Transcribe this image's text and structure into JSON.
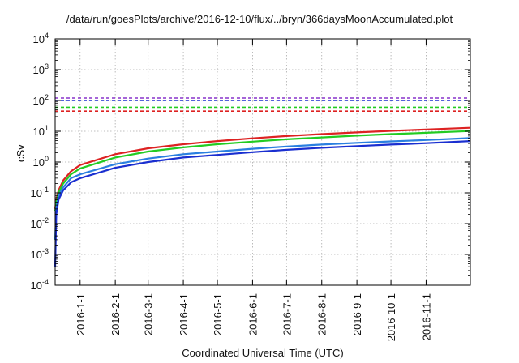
{
  "chart_data": {
    "type": "line",
    "title": "/data/run/goesPlots/archive/2016-12-10/flux/../bryn/366daysMoonAccumulated.plot",
    "xlabel": "Coordinated Universal Time (UTC)",
    "ylabel": "cSv",
    "y_scale": "log",
    "ylim": [
      0.0001,
      10000
    ],
    "y_tick_labels": [
      {
        "base": "10",
        "exp": "-4"
      },
      {
        "base": "10",
        "exp": "-3"
      },
      {
        "base": "10",
        "exp": "-2"
      },
      {
        "base": "10",
        "exp": "-1"
      },
      {
        "base": "10",
        "exp": "0"
      },
      {
        "base": "10",
        "exp": "1"
      },
      {
        "base": "10",
        "exp": "2"
      },
      {
        "base": "10",
        "exp": "3"
      },
      {
        "base": "10",
        "exp": "4"
      }
    ],
    "xlim": [
      "2015-12-10",
      "2016-12-10"
    ],
    "x_ticks": [
      {
        "label": "2016-1-1",
        "date": "2016-01-01"
      },
      {
        "label": "2016-2-1",
        "date": "2016-02-01"
      },
      {
        "label": "2016-3-1",
        "date": "2016-03-01"
      },
      {
        "label": "2016-4-1",
        "date": "2016-04-01"
      },
      {
        "label": "2016-5-1",
        "date": "2016-05-01"
      },
      {
        "label": "2016-6-1",
        "date": "2016-06-01"
      },
      {
        "label": "2016-7-1",
        "date": "2016-07-01"
      },
      {
        "label": "2016-8-1",
        "date": "2016-08-01"
      },
      {
        "label": "2016-9-1",
        "date": "2016-09-01"
      },
      {
        "label": "2016-10-1",
        "date": "2016-10-01"
      },
      {
        "label": "2016-11-1",
        "date": "2016-11-01"
      }
    ],
    "grid": true,
    "series": [
      {
        "color": "#dd2222",
        "x": [
          "2015-12-10",
          "2015-12-11",
          "2015-12-13",
          "2015-12-17",
          "2015-12-24",
          "2016-01-01",
          "2016-02-01",
          "2016-03-01",
          "2016-04-01",
          "2016-05-01",
          "2016-06-01",
          "2016-07-01",
          "2016-08-01",
          "2016-09-01",
          "2016-10-01",
          "2016-11-01",
          "2016-12-10"
        ],
        "y": [
          0.03,
          0.06,
          0.12,
          0.25,
          0.5,
          0.8,
          1.8,
          2.8,
          3.8,
          4.8,
          5.9,
          7.0,
          8.1,
          9.2,
          10.3,
          11.4,
          13.0
        ]
      },
      {
        "color": "#22cc22",
        "x": [
          "2015-12-10",
          "2015-12-11",
          "2015-12-13",
          "2015-12-17",
          "2015-12-24",
          "2016-01-01",
          "2016-02-01",
          "2016-03-01",
          "2016-04-01",
          "2016-05-01",
          "2016-06-01",
          "2016-07-01",
          "2016-08-01",
          "2016-09-01",
          "2016-10-01",
          "2016-11-01",
          "2016-12-10"
        ],
        "y": [
          0.025,
          0.05,
          0.1,
          0.2,
          0.4,
          0.62,
          1.4,
          2.2,
          3.0,
          3.8,
          4.6,
          5.5,
          6.3,
          7.2,
          8.1,
          8.9,
          10.2
        ]
      },
      {
        "color": "#2a7fe0",
        "x": [
          "2015-12-10",
          "2015-12-11",
          "2015-12-13",
          "2015-12-17",
          "2015-12-24",
          "2016-01-01",
          "2016-02-01",
          "2016-03-01",
          "2016-04-01",
          "2016-05-01",
          "2016-06-01",
          "2016-07-01",
          "2016-08-01",
          "2016-09-01",
          "2016-10-01",
          "2016-11-01",
          "2016-12-10"
        ],
        "y": [
          0.003,
          0.03,
          0.08,
          0.15,
          0.3,
          0.4,
          0.85,
          1.3,
          1.8,
          2.2,
          2.7,
          3.2,
          3.7,
          4.2,
          4.7,
          5.2,
          6.0
        ]
      },
      {
        "color": "#1a2fd0",
        "x": [
          "2015-12-10",
          "2015-12-11",
          "2015-12-13",
          "2015-12-17",
          "2015-12-24",
          "2016-01-01",
          "2016-02-01",
          "2016-03-01",
          "2016-04-01",
          "2016-05-01",
          "2016-06-01",
          "2016-07-01",
          "2016-08-01",
          "2016-09-01",
          "2016-10-01",
          "2016-11-01",
          "2016-12-10"
        ],
        "y": [
          0.0004,
          0.02,
          0.06,
          0.12,
          0.22,
          0.3,
          0.65,
          1.0,
          1.4,
          1.7,
          2.1,
          2.5,
          2.9,
          3.3,
          3.7,
          4.1,
          4.8
        ]
      }
    ],
    "reference_lines": [
      {
        "color": "#8833cc",
        "y": 120
      },
      {
        "color": "#1a2fd0",
        "y": 100
      },
      {
        "color": "#22cc22",
        "y": 60
      },
      {
        "color": "#dd2222",
        "y": 45
      }
    ]
  }
}
